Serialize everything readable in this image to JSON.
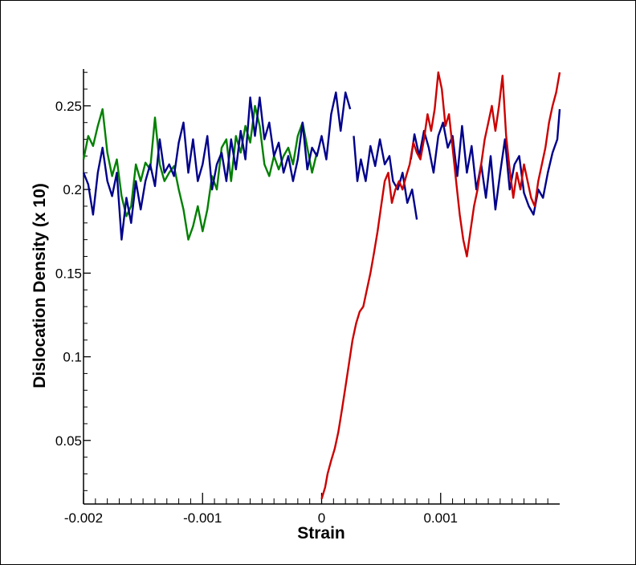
{
  "chart_data": {
    "type": "line",
    "title": "",
    "xlabel": "Strain",
    "ylabel": "Dislocation Density (x 10)",
    "xlim": [
      -0.002,
      0.002
    ],
    "ylim": [
      0.012,
      0.272
    ],
    "x_ticks": [
      -0.002,
      -0.001,
      0,
      0.001
    ],
    "x_tick_labels": [
      "-0.002",
      "-0.001",
      "0",
      "0.001"
    ],
    "y_ticks": [
      0.05,
      0.1,
      0.15,
      0.2,
      0.25
    ],
    "y_tick_labels": [
      "0.05",
      "0.1",
      "0.15",
      "0.2",
      "0.25"
    ],
    "grid": false,
    "series": [
      {
        "color": "#008000",
        "segments": [
          [
            [
              -0.002,
              0.218
            ],
            [
              -0.00196,
              0.232
            ],
            [
              -0.00192,
              0.226
            ],
            [
              -0.00188,
              0.238
            ],
            [
              -0.00184,
              0.248
            ],
            [
              -0.0018,
              0.222
            ],
            [
              -0.00176,
              0.208
            ],
            [
              -0.00172,
              0.218
            ],
            [
              -0.00168,
              0.196
            ],
            [
              -0.00164,
              0.184
            ],
            [
              -0.0016,
              0.19
            ],
            [
              -0.00156,
              0.215
            ],
            [
              -0.00152,
              0.205
            ],
            [
              -0.00148,
              0.216
            ],
            [
              -0.00144,
              0.212
            ],
            [
              -0.0014,
              0.243
            ],
            [
              -0.00136,
              0.215
            ],
            [
              -0.00132,
              0.205
            ],
            [
              -0.00128,
              0.21
            ],
            [
              -0.00124,
              0.214
            ],
            [
              -0.0012,
              0.2
            ],
            [
              -0.00116,
              0.188
            ],
            [
              -0.00112,
              0.17
            ],
            [
              -0.00108,
              0.178
            ],
            [
              -0.00104,
              0.19
            ],
            [
              -0.001,
              0.175
            ],
            [
              -0.00096,
              0.188
            ],
            [
              -0.00092,
              0.208
            ],
            [
              -0.00088,
              0.2
            ],
            [
              -0.00084,
              0.225
            ],
            [
              -0.0008,
              0.23
            ],
            [
              -0.00076,
              0.205
            ],
            [
              -0.00072,
              0.232
            ],
            [
              -0.00068,
              0.222
            ],
            [
              -0.00064,
              0.238
            ],
            [
              -0.0006,
              0.228
            ],
            [
              -0.00056,
              0.25
            ],
            [
              -0.00052,
              0.238
            ],
            [
              -0.00048,
              0.215
            ],
            [
              -0.00044,
              0.208
            ],
            [
              -0.0004,
              0.22
            ],
            [
              -0.00036,
              0.212
            ],
            [
              -0.00032,
              0.22
            ],
            [
              -0.00028,
              0.225
            ],
            [
              -0.00024,
              0.215
            ],
            [
              -0.0002,
              0.232
            ],
            [
              -0.00016,
              0.24
            ],
            [
              -0.00012,
              0.225
            ],
            [
              -8e-05,
              0.21
            ],
            [
              -4e-05,
              0.222
            ]
          ]
        ]
      },
      {
        "color": "#00008b",
        "segments": [
          [
            [
              -0.002,
              0.21
            ],
            [
              -0.00196,
              0.203
            ],
            [
              -0.00192,
              0.185
            ],
            [
              -0.00188,
              0.21
            ],
            [
              -0.00184,
              0.225
            ],
            [
              -0.0018,
              0.205
            ],
            [
              -0.00176,
              0.196
            ],
            [
              -0.00172,
              0.21
            ],
            [
              -0.00168,
              0.17
            ],
            [
              -0.00164,
              0.195
            ],
            [
              -0.0016,
              0.18
            ],
            [
              -0.00156,
              0.205
            ],
            [
              -0.00152,
              0.188
            ],
            [
              -0.00148,
              0.205
            ],
            [
              -0.00144,
              0.215
            ],
            [
              -0.0014,
              0.202
            ],
            [
              -0.00136,
              0.23
            ],
            [
              -0.00132,
              0.21
            ],
            [
              -0.00128,
              0.215
            ],
            [
              -0.00124,
              0.208
            ],
            [
              -0.0012,
              0.228
            ],
            [
              -0.00116,
              0.24
            ],
            [
              -0.00112,
              0.21
            ],
            [
              -0.00108,
              0.23
            ],
            [
              -0.00104,
              0.205
            ],
            [
              -0.001,
              0.215
            ],
            [
              -0.00096,
              0.232
            ],
            [
              -0.00092,
              0.2
            ],
            [
              -0.00088,
              0.215
            ],
            [
              -0.00084,
              0.222
            ],
            [
              -0.0008,
              0.205
            ],
            [
              -0.00076,
              0.23
            ],
            [
              -0.00072,
              0.212
            ],
            [
              -0.00068,
              0.235
            ],
            [
              -0.00064,
              0.218
            ],
            [
              -0.0006,
              0.255
            ],
            [
              -0.00056,
              0.232
            ],
            [
              -0.00052,
              0.255
            ],
            [
              -0.00048,
              0.23
            ],
            [
              -0.00044,
              0.24
            ],
            [
              -0.0004,
              0.22
            ],
            [
              -0.00036,
              0.228
            ],
            [
              -0.00032,
              0.21
            ],
            [
              -0.00028,
              0.22
            ],
            [
              -0.00024,
              0.205
            ],
            [
              -0.0002,
              0.218
            ],
            [
              -0.00016,
              0.24
            ],
            [
              -0.00012,
              0.212
            ],
            [
              -8e-05,
              0.225
            ],
            [
              -4e-05,
              0.22
            ],
            [
              0.0,
              0.232
            ],
            [
              4e-05,
              0.218
            ],
            [
              8e-05,
              0.245
            ],
            [
              0.00012,
              0.258
            ],
            [
              0.00016,
              0.235
            ],
            [
              0.0002,
              0.258
            ],
            [
              0.00024,
              0.248
            ]
          ],
          [
            [
              0.00027,
              0.232
            ],
            [
              0.0003,
              0.205
            ],
            [
              0.00033,
              0.218
            ],
            [
              0.00037,
              0.205
            ],
            [
              0.00041,
              0.226
            ],
            [
              0.00045,
              0.214
            ],
            [
              0.00049,
              0.23
            ],
            [
              0.00053,
              0.215
            ],
            [
              0.00057,
              0.22
            ],
            [
              0.0006,
              0.205
            ],
            [
              0.00064,
              0.2
            ],
            [
              0.00068,
              0.21
            ],
            [
              0.00072,
              0.192
            ],
            [
              0.00076,
              0.2
            ],
            [
              0.0008,
              0.182
            ]
          ],
          [
            [
              0.00075,
              0.218
            ],
            [
              0.00078,
              0.233
            ],
            [
              0.00082,
              0.22
            ],
            [
              0.00086,
              0.235
            ],
            [
              0.0009,
              0.225
            ],
            [
              0.00094,
              0.21
            ],
            [
              0.00098,
              0.232
            ],
            [
              0.00102,
              0.24
            ],
            [
              0.00106,
              0.225
            ],
            [
              0.0011,
              0.232
            ],
            [
              0.00114,
              0.208
            ],
            [
              0.00118,
              0.238
            ],
            [
              0.00122,
              0.21
            ],
            [
              0.00126,
              0.226
            ],
            [
              0.0013,
              0.2
            ],
            [
              0.00134,
              0.215
            ],
            [
              0.00138,
              0.195
            ],
            [
              0.00142,
              0.22
            ],
            [
              0.00146,
              0.188
            ],
            [
              0.0015,
              0.21
            ],
            [
              0.00154,
              0.23
            ],
            [
              0.00158,
              0.2
            ],
            [
              0.00162,
              0.215
            ],
            [
              0.00166,
              0.22
            ],
            [
              0.0017,
              0.198
            ],
            [
              0.00174,
              0.19
            ],
            [
              0.00178,
              0.185
            ],
            [
              0.00182,
              0.2
            ],
            [
              0.00186,
              0.195
            ],
            [
              0.0019,
              0.21
            ],
            [
              0.00194,
              0.222
            ],
            [
              0.00198,
              0.23
            ],
            [
              0.002,
              0.248
            ]
          ]
        ]
      },
      {
        "color": "#cc0000",
        "segments": [
          [
            [
              0.0,
              0.015
            ],
            [
              3e-05,
              0.022
            ],
            [
              5e-05,
              0.03
            ],
            [
              8e-05,
              0.038
            ],
            [
              0.00011,
              0.045
            ],
            [
              0.00014,
              0.055
            ],
            [
              0.00017,
              0.068
            ],
            [
              0.0002,
              0.082
            ],
            [
              0.00023,
              0.096
            ],
            [
              0.00026,
              0.11
            ],
            [
              0.00029,
              0.12
            ],
            [
              0.00032,
              0.127
            ],
            [
              0.00035,
              0.13
            ],
            [
              0.00038,
              0.14
            ],
            [
              0.00041,
              0.15
            ],
            [
              0.00044,
              0.162
            ],
            [
              0.00047,
              0.175
            ],
            [
              0.0005,
              0.19
            ],
            [
              0.00053,
              0.205
            ],
            [
              0.00056,
              0.21
            ],
            [
              0.00059,
              0.192
            ],
            [
              0.00062,
              0.2
            ],
            [
              0.00065,
              0.205
            ],
            [
              0.00068,
              0.2
            ],
            [
              0.00071,
              0.208
            ],
            [
              0.00074,
              0.215
            ],
            [
              0.00077,
              0.228
            ],
            [
              0.0008,
              0.222
            ],
            [
              0.00083,
              0.218
            ],
            [
              0.00086,
              0.23
            ],
            [
              0.00089,
              0.245
            ],
            [
              0.00092,
              0.235
            ],
            [
              0.00095,
              0.248
            ],
            [
              0.00098,
              0.27
            ],
            [
              0.00101,
              0.26
            ],
            [
              0.00104,
              0.238
            ],
            [
              0.00107,
              0.245
            ],
            [
              0.0011,
              0.225
            ],
            [
              0.00113,
              0.205
            ],
            [
              0.00116,
              0.185
            ],
            [
              0.00119,
              0.17
            ],
            [
              0.00122,
              0.16
            ],
            [
              0.00125,
              0.175
            ],
            [
              0.00128,
              0.19
            ],
            [
              0.00131,
              0.2
            ],
            [
              0.00134,
              0.215
            ],
            [
              0.00137,
              0.23
            ],
            [
              0.0014,
              0.24
            ],
            [
              0.00143,
              0.25
            ],
            [
              0.00146,
              0.235
            ],
            [
              0.00149,
              0.25
            ],
            [
              0.00152,
              0.268
            ],
            [
              0.00155,
              0.232
            ],
            [
              0.00158,
              0.212
            ],
            [
              0.00161,
              0.195
            ],
            [
              0.00164,
              0.21
            ],
            [
              0.00167,
              0.2
            ],
            [
              0.0017,
              0.215
            ],
            [
              0.00173,
              0.205
            ],
            [
              0.00176,
              0.195
            ],
            [
              0.00179,
              0.19
            ],
            [
              0.00182,
              0.205
            ],
            [
              0.00185,
              0.215
            ],
            [
              0.00188,
              0.225
            ],
            [
              0.00191,
              0.24
            ],
            [
              0.00194,
              0.25
            ],
            [
              0.00197,
              0.258
            ],
            [
              0.002,
              0.27
            ]
          ]
        ]
      }
    ]
  }
}
